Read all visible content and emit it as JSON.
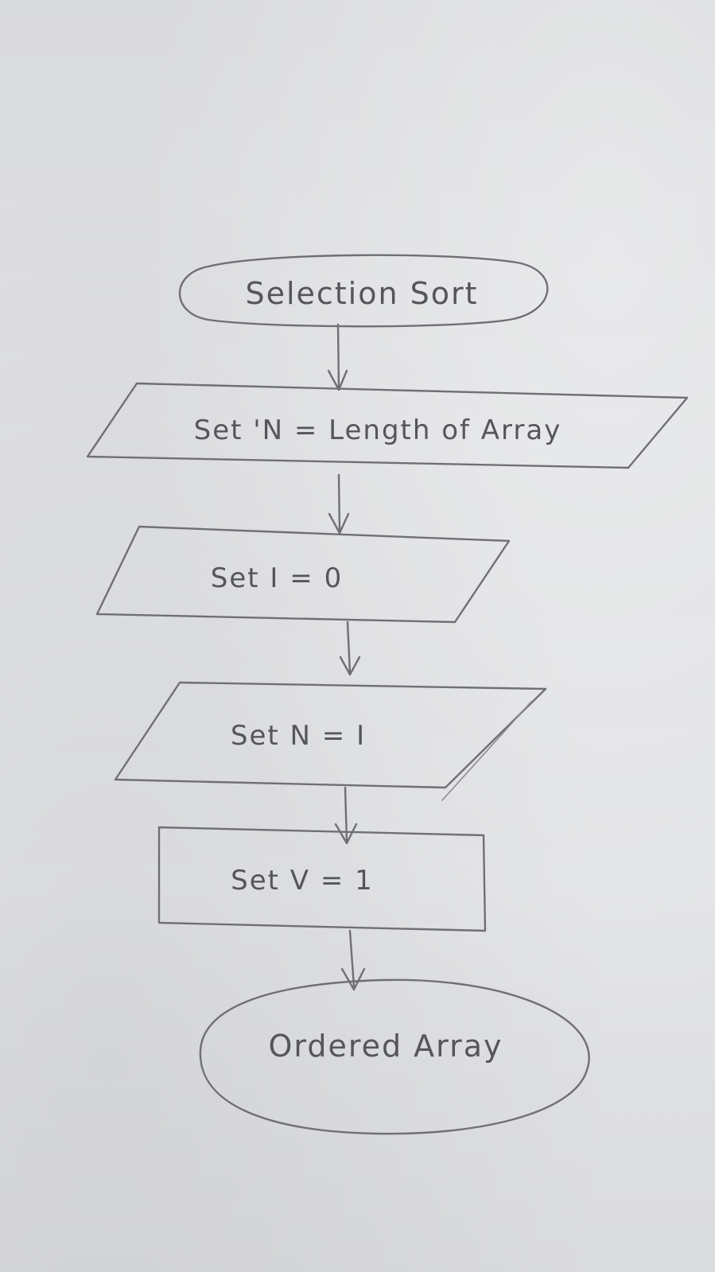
{
  "flowchart": {
    "nodes": [
      {
        "id": "start",
        "shape": "terminator",
        "text": "Selection Sort"
      },
      {
        "id": "n-length",
        "shape": "parallelogram",
        "text": "Set 'N = Length of Array"
      },
      {
        "id": "i-zero",
        "shape": "parallelogram",
        "text": "Set I = 0"
      },
      {
        "id": "n-i",
        "shape": "parallelogram",
        "text": "Set N = I"
      },
      {
        "id": "v-one",
        "shape": "process",
        "text": "Set V = 1"
      },
      {
        "id": "end",
        "shape": "terminator",
        "text": "Ordered Array"
      }
    ],
    "edges": [
      {
        "from": "start",
        "to": "n-length"
      },
      {
        "from": "n-length",
        "to": "i-zero"
      },
      {
        "from": "i-zero",
        "to": "n-i"
      },
      {
        "from": "n-i",
        "to": "v-one"
      },
      {
        "from": "v-one",
        "to": "end"
      }
    ]
  }
}
